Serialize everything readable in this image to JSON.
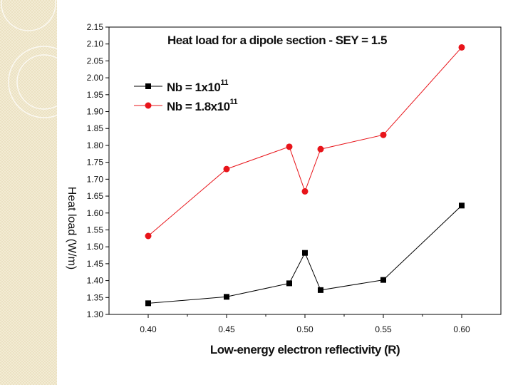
{
  "colors": {
    "series_nb1": "#000000",
    "series_nb18": "#e8141a",
    "deco_bg": "#f3ecd5",
    "deco_line": "#e6dcba"
  },
  "chart_data": {
    "type": "line",
    "title": "Heat load for a dipole section - SEY = 1.5",
    "xlabel": "Low-energy electron reflectivity (R)",
    "ylabel": "Heat load (W/m)",
    "xlim": [
      0.375,
      0.625
    ],
    "ylim": [
      1.3,
      2.15
    ],
    "xticks": [
      "0.40",
      "0.45",
      "0.50",
      "0.55",
      "0.60"
    ],
    "yticks": [
      "1.30",
      "1.35",
      "1.40",
      "1.45",
      "1.50",
      "1.55",
      "1.60",
      "1.65",
      "1.70",
      "1.75",
      "1.80",
      "1.85",
      "1.90",
      "1.95",
      "2.00",
      "2.05",
      "2.10",
      "2.15"
    ],
    "legend_position": "top-left",
    "series": [
      {
        "name": "Nb = 1x10^11",
        "label_main": "Nb = 1x10",
        "label_exp": "11",
        "marker": "square",
        "color": "#000000",
        "x": [
          0.4,
          0.45,
          0.49,
          0.5,
          0.51,
          0.55,
          0.6
        ],
        "y": [
          1.333,
          1.352,
          1.392,
          1.482,
          1.372,
          1.402,
          1.622
        ]
      },
      {
        "name": "Nb = 1.8x10^11",
        "label_main": "Nb = 1.8x10",
        "label_exp": "11",
        "marker": "circle",
        "color": "#e8141a",
        "x": [
          0.4,
          0.45,
          0.49,
          0.5,
          0.51,
          0.55,
          0.6
        ],
        "y": [
          1.532,
          1.73,
          1.796,
          1.664,
          1.789,
          1.831,
          2.09
        ]
      }
    ]
  }
}
